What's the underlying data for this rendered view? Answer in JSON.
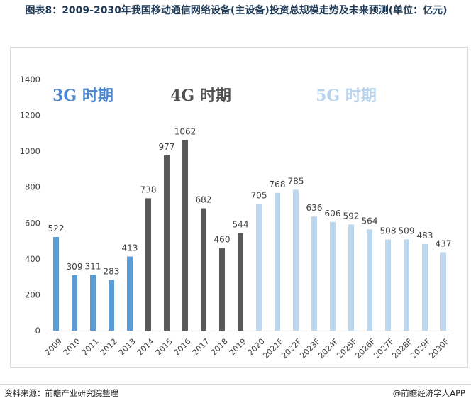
{
  "header": {
    "title": "图表8：2009-2030年我国移动通信网络设备(主设备)投资总规模走势及未来预测(单位：亿元)"
  },
  "footer": {
    "source": "资料来源：前瞻产业研究院整理",
    "brand": "@前瞻经济学人APP"
  },
  "colors": {
    "3g": "#5b9bd5",
    "4g": "#595959",
    "5g": "#bdd7ee",
    "3g_label": "#4a86cf",
    "4g_label": "#505050",
    "5g_label": "#b8d3ee"
  },
  "chart_data": {
    "type": "bar",
    "categories": [
      "2009",
      "2010",
      "2011",
      "2012",
      "2013",
      "2014",
      "2015",
      "2016",
      "2017",
      "2018",
      "2019",
      "2020",
      "2021F",
      "2022F",
      "2023F",
      "2024F",
      "2025F",
      "2026F",
      "2027F",
      "2028F",
      "2029F",
      "2030F"
    ],
    "values": [
      522,
      309,
      311,
      283,
      413,
      738,
      977,
      1062,
      682,
      460,
      544,
      705,
      768,
      785,
      636,
      606,
      592,
      564,
      508,
      509,
      483,
      437
    ],
    "groups": [
      "3g",
      "3g",
      "3g",
      "3g",
      "3g",
      "4g",
      "4g",
      "4g",
      "4g",
      "4g",
      "4g",
      "5g",
      "5g",
      "5g",
      "5g",
      "5g",
      "5g",
      "5g",
      "5g",
      "5g",
      "5g",
      "5g"
    ],
    "period_labels": [
      {
        "key": "3g",
        "text": "3G 时期"
      },
      {
        "key": "4g",
        "text": "4G 时期"
      },
      {
        "key": "5g",
        "text": "5G 时期"
      }
    ],
    "yticks": [
      0,
      200,
      400,
      600,
      800,
      1000,
      1200,
      1400
    ],
    "ylim": [
      0,
      1400
    ],
    "grid": false,
    "legend": "none"
  }
}
